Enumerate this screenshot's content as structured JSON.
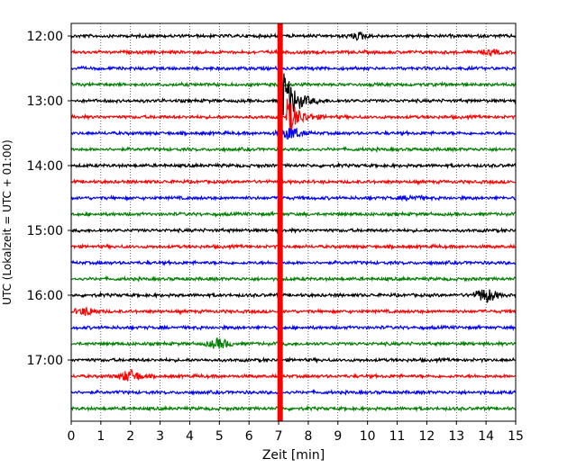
{
  "chart_data": {
    "type": "line",
    "title": "",
    "xlabel": "Zeit  [min]",
    "ylabel": "UTC (Lokalzeit = UTC + 01:00)",
    "xlim": [
      0,
      15
    ],
    "x_ticks": [
      0,
      1,
      2,
      3,
      4,
      5,
      6,
      7,
      8,
      9,
      10,
      11,
      12,
      13,
      14,
      15
    ],
    "y_tick_labels": [
      "12:00",
      "13:00",
      "14:00",
      "15:00",
      "16:00",
      "17:00"
    ],
    "grid": "vertical dotted at each minute",
    "legend": "none",
    "colors_cycle": [
      "#000000",
      "#ff0000",
      "#0000ff",
      "#008000"
    ],
    "traces": [
      {
        "start": "12:00",
        "color": "#000000"
      },
      {
        "start": "12:15",
        "color": "#ff0000"
      },
      {
        "start": "12:30",
        "color": "#0000ff"
      },
      {
        "start": "12:45",
        "color": "#008000"
      },
      {
        "start": "13:00",
        "color": "#000000"
      },
      {
        "start": "13:15",
        "color": "#ff0000"
      },
      {
        "start": "13:30",
        "color": "#0000ff"
      },
      {
        "start": "13:45",
        "color": "#008000"
      },
      {
        "start": "14:00",
        "color": "#000000"
      },
      {
        "start": "14:15",
        "color": "#ff0000"
      },
      {
        "start": "14:30",
        "color": "#0000ff"
      },
      {
        "start": "14:45",
        "color": "#008000"
      },
      {
        "start": "15:00",
        "color": "#000000"
      },
      {
        "start": "15:15",
        "color": "#ff0000"
      },
      {
        "start": "15:30",
        "color": "#0000ff"
      },
      {
        "start": "15:45",
        "color": "#008000"
      },
      {
        "start": "16:00",
        "color": "#000000"
      },
      {
        "start": "16:15",
        "color": "#ff0000"
      },
      {
        "start": "16:30",
        "color": "#0000ff"
      },
      {
        "start": "16:45",
        "color": "#008000"
      },
      {
        "start": "17:00",
        "color": "#000000"
      },
      {
        "start": "17:15",
        "color": "#ff0000"
      },
      {
        "start": "17:30",
        "color": "#0000ff"
      },
      {
        "start": "17:45",
        "color": "#008000"
      }
    ],
    "events": [
      {
        "trace": "12:00",
        "x": 9.7,
        "amplitude": 0.25
      },
      {
        "trace": "12:15",
        "x": 14.2,
        "amplitude": 0.15
      },
      {
        "trace": "13:00",
        "x": 7.1,
        "amplitude": 3.5
      },
      {
        "trace": "13:15",
        "x": 7.3,
        "amplitude": 1.8
      },
      {
        "trace": "13:30",
        "x": 7.4,
        "amplitude": 0.5
      },
      {
        "trace": "14:30",
        "x": 11.5,
        "amplitude": 0.15
      },
      {
        "trace": "16:00",
        "x": 14.0,
        "amplitude": 0.6
      },
      {
        "trace": "16:15",
        "x": 0.5,
        "amplitude": 0.3
      },
      {
        "trace": "16:45",
        "x": 5.0,
        "amplitude": 0.4
      },
      {
        "trace": "17:15",
        "x": 2.0,
        "amplitude": 0.5
      }
    ],
    "vertical_marker": {
      "x": 7.05,
      "color": "#ff0000"
    }
  }
}
